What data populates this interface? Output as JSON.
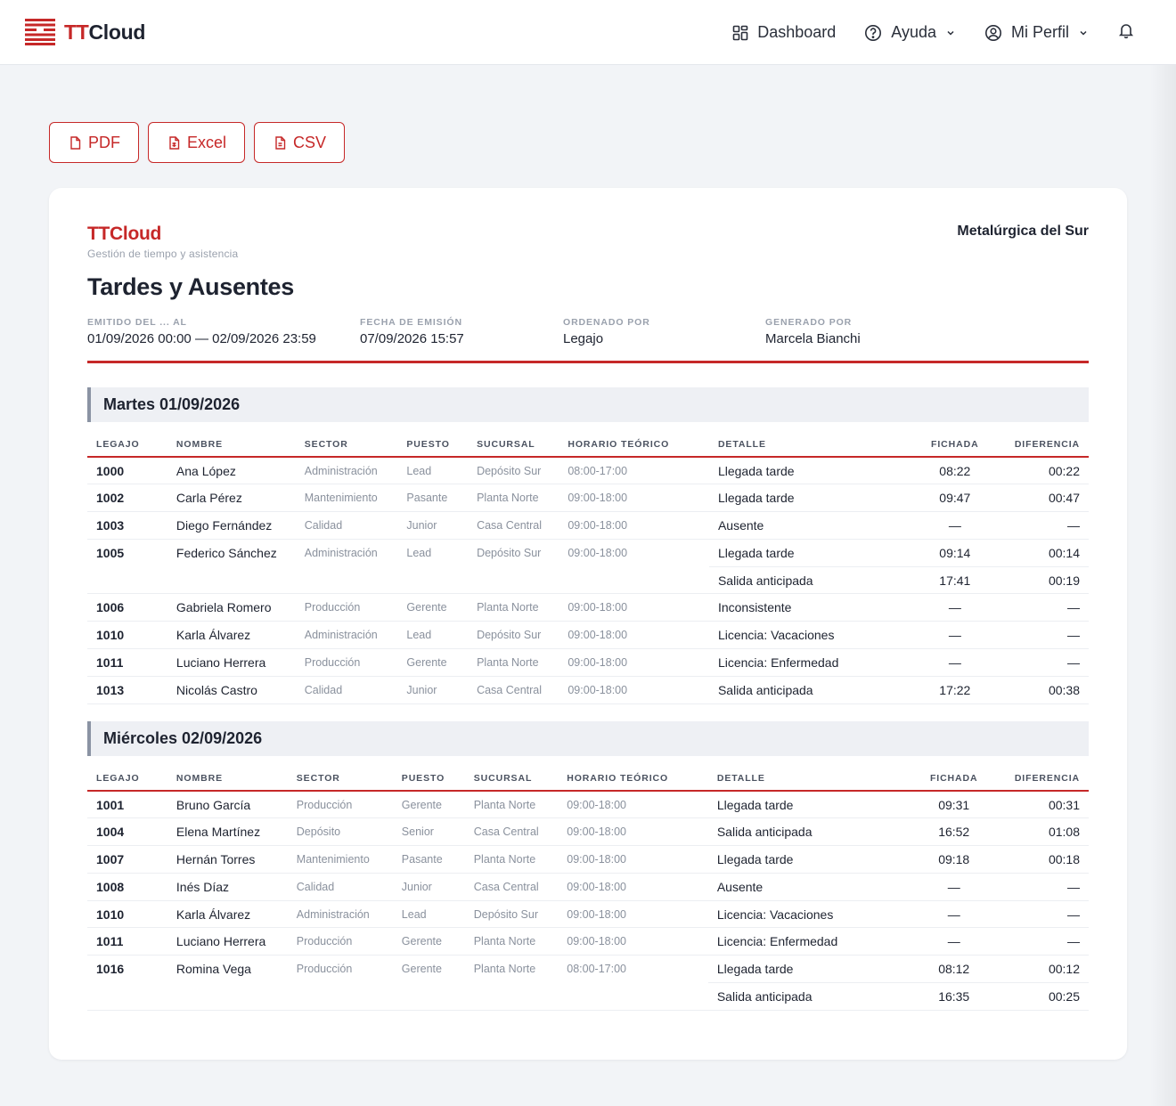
{
  "header": {
    "brand_tt": "TT",
    "brand_cloud": "Cloud",
    "nav": {
      "dashboard": "Dashboard",
      "help": "Ayuda",
      "profile": "Mi Perfil"
    }
  },
  "exports": {
    "pdf": "PDF",
    "excel": "Excel",
    "csv": "CSV"
  },
  "report": {
    "brand": "TTCloud",
    "subtitle": "Gestión de tiempo y asistencia",
    "company": "Metalúrgica del Sur",
    "title": "Tardes y Ausentes",
    "meta": {
      "period_label": "EMITIDO DEL ... AL",
      "period_value": "01/09/2026 00:00 — 02/09/2026 23:59",
      "issued_label": "FECHA DE EMISIÓN",
      "issued_value": "07/09/2026 15:57",
      "order_label": "ORDENADO POR",
      "order_value": "Legajo",
      "generated_label": "GENERADO POR",
      "generated_value": "Marcela Bianchi"
    },
    "columns": [
      "LEGAJO",
      "NOMBRE",
      "SECTOR",
      "PUESTO",
      "SUCURSAL",
      "HORARIO TEÓRICO",
      "DETALLE",
      "FICHADA",
      "DIFERENCIA"
    ],
    "days": [
      {
        "title": "Martes 01/09/2026",
        "rows": [
          [
            "1000",
            "Ana López",
            "Administración",
            "Lead",
            "Depósito Sur",
            "08:00-17:00",
            "Llegada tarde",
            "08:22",
            "00:22"
          ],
          [
            "1002",
            "Carla Pérez",
            "Mantenimiento",
            "Pasante",
            "Planta Norte",
            "09:00-18:00",
            "Llegada tarde",
            "09:47",
            "00:47"
          ],
          [
            "1003",
            "Diego Fernández",
            "Calidad",
            "Junior",
            "Casa Central",
            "09:00-18:00",
            "Ausente",
            "—",
            "—"
          ],
          [
            "1005",
            "Federico Sánchez",
            "Administración",
            "Lead",
            "Depósito Sur",
            "09:00-18:00",
            "Llegada tarde",
            "09:14",
            "00:14"
          ],
          [
            "",
            "",
            "",
            "",
            "",
            "",
            "Salida anticipada",
            "17:41",
            "00:19"
          ],
          [
            "1006",
            "Gabriela Romero",
            "Producción",
            "Gerente",
            "Planta Norte",
            "09:00-18:00",
            "Inconsistente",
            "—",
            "—"
          ],
          [
            "1010",
            "Karla Álvarez",
            "Administración",
            "Lead",
            "Depósito Sur",
            "09:00-18:00",
            "Licencia: Vacaciones",
            "—",
            "—"
          ],
          [
            "1011",
            "Luciano Herrera",
            "Producción",
            "Gerente",
            "Planta Norte",
            "09:00-18:00",
            "Licencia: Enfermedad",
            "—",
            "—"
          ],
          [
            "1013",
            "Nicolás Castro",
            "Calidad",
            "Junior",
            "Casa Central",
            "09:00-18:00",
            "Salida anticipada",
            "17:22",
            "00:38"
          ]
        ]
      },
      {
        "title": "Miércoles 02/09/2026",
        "rows": [
          [
            "1001",
            "Bruno García",
            "Producción",
            "Gerente",
            "Planta Norte",
            "09:00-18:00",
            "Llegada tarde",
            "09:31",
            "00:31"
          ],
          [
            "1004",
            "Elena Martínez",
            "Depósito",
            "Senior",
            "Casa Central",
            "09:00-18:00",
            "Salida anticipada",
            "16:52",
            "01:08"
          ],
          [
            "1007",
            "Hernán Torres",
            "Mantenimiento",
            "Pasante",
            "Planta Norte",
            "09:00-18:00",
            "Llegada tarde",
            "09:18",
            "00:18"
          ],
          [
            "1008",
            "Inés Díaz",
            "Calidad",
            "Junior",
            "Casa Central",
            "09:00-18:00",
            "Ausente",
            "—",
            "—"
          ],
          [
            "1010",
            "Karla Álvarez",
            "Administración",
            "Lead",
            "Depósito Sur",
            "09:00-18:00",
            "Licencia: Vacaciones",
            "—",
            "—"
          ],
          [
            "1011",
            "Luciano Herrera",
            "Producción",
            "Gerente",
            "Planta Norte",
            "09:00-18:00",
            "Licencia: Enfermedad",
            "—",
            "—"
          ],
          [
            "1016",
            "Romina Vega",
            "Producción",
            "Gerente",
            "Planta Norte",
            "08:00-17:00",
            "Llegada tarde",
            "08:12",
            "00:12"
          ],
          [
            "",
            "",
            "",
            "",
            "",
            "",
            "Salida anticipada",
            "16:35",
            "00:25"
          ]
        ]
      }
    ]
  },
  "colors": {
    "accent": "#c62828",
    "text": "#1e2330",
    "muted": "#8a919d",
    "page_bg": "#f2f4f7"
  }
}
